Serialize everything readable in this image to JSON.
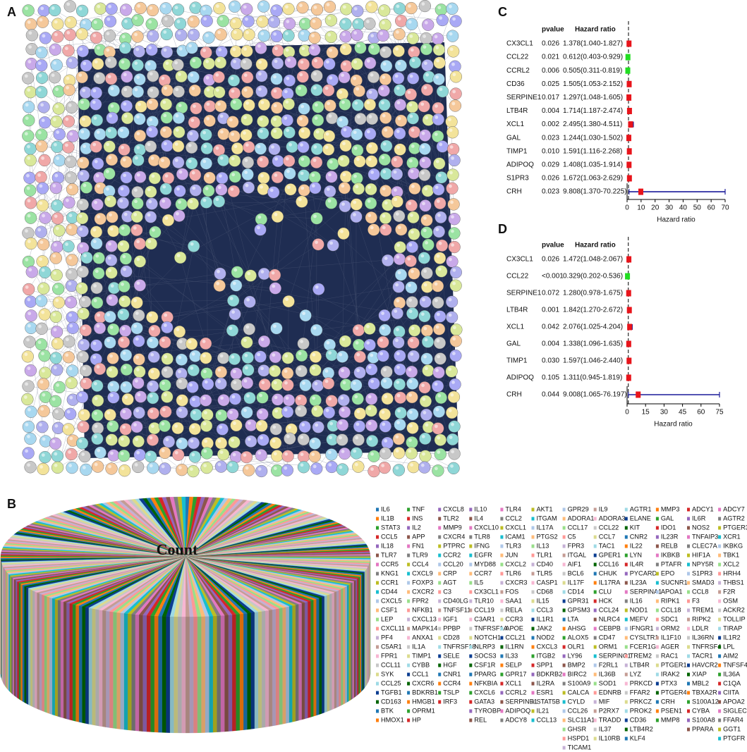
{
  "panels": {
    "A": {
      "label": "A"
    },
    "B": {
      "label": "B",
      "type": "pie",
      "center_label": "Count",
      "colors": [
        "#1f77b4",
        "#ff7f0e",
        "#2ca02c",
        "#d62728",
        "#9467bd",
        "#8c564b",
        "#e377c2",
        "#7f7f7f",
        "#bcbd22",
        "#17becf",
        "#aec7e8",
        "#ffbb78",
        "#98df8a",
        "#ff9896",
        "#c5b0d5",
        "#c49c94",
        "#f7b6d2",
        "#c7c7c7",
        "#dbdb8d",
        "#9edae5",
        "#0b3d91",
        "#006400"
      ],
      "columns": [
        [
          "IL6",
          "IL1B",
          "STAT3",
          "CCL5",
          "IL18",
          "TLR7",
          "CCR5",
          "KNG1",
          "CCR1",
          "CD44",
          "CXCL5",
          "CSF1",
          "LEP",
          "CXCL11",
          "PF4",
          "C5AR1",
          "FPR1",
          "CCL11",
          "SYK",
          "CCL25",
          "TGFB1",
          "CD163",
          "BTK",
          "HMOX1"
        ],
        [
          "TNF",
          "INS",
          "IL2",
          "APP",
          "FN1",
          "TLR9",
          "CCL4",
          "CXCL9",
          "FOXP3",
          "CXCR2",
          "FPR2",
          "NFKB1",
          "CXCL13",
          "MAPK14",
          "ANXA1",
          "IL1A",
          "TIMP1",
          "CYBB",
          "CCL1",
          "CXCR6",
          "BDKRB1",
          "HMGB1",
          "OPRM1",
          "HP"
        ],
        [
          "CXCL8",
          "TLR2",
          "MMP9",
          "CXCR4",
          "PTPRC",
          "CCR2",
          "CCL20",
          "CRP",
          "AGT",
          "C3",
          "CD40LG",
          "TNFSF11",
          "IGF1",
          "PPBP",
          "CD28",
          "TNFRSF18",
          "SELE",
          "HGF",
          "CNR1",
          "CCR4",
          "TSLP",
          "IRF3"
        ],
        [
          "IL10",
          "IL4",
          "CXCL10",
          "TLR8",
          "IFNG",
          "EGFR",
          "MYD88",
          "CCR7",
          "IL5",
          "CX3CL1",
          "TLR10",
          "CCL19",
          "C3AR1",
          "TNFRSF1A",
          "NOTCH1",
          "NLRP3",
          "SOCS3",
          "CSF1R",
          "PPARG",
          "NFKBIA",
          "CXCL6",
          "GATA3",
          "TYROBP",
          "REL"
        ],
        [
          "TLR4",
          "CCL2",
          "CXCL1",
          "ICAM1",
          "TLR3",
          "JUN",
          "CXCL2",
          "TLR6",
          "CXCR3",
          "FOS",
          "SAA1",
          "RELA",
          "CCR3",
          "APOE",
          "CCL21",
          "IL1RN",
          "IL33",
          "SELP",
          "GPR17",
          "XCL1",
          "CCRL2",
          "SERPINE1",
          "ADIPOQ",
          "ADCY8"
        ],
        [
          "AKT1",
          "ITGAM",
          "IL17A",
          "PTGS2",
          "IL13",
          "TLR1",
          "CD40",
          "TLR5",
          "CASP1",
          "CD68",
          "IL15",
          "CCL3",
          "IL1R1",
          "JAK2",
          "NOD2",
          "CXCL3",
          "ITGB2",
          "SPP1",
          "BDKRB2",
          "IL2RA",
          "ESR1",
          "STAT5B",
          "IL21",
          "CCL13"
        ],
        [
          "GPR29",
          "ADORA1",
          "CCL17",
          "C5",
          "FPR3",
          "ITGAL",
          "AIF1",
          "BCL6",
          "IL17F",
          "CD14",
          "GPR31",
          "GPSM3",
          "LTA",
          "AHSG",
          "ALOX5",
          "OLR1",
          "LY96",
          "BMP2",
          "BIRC2",
          "S100A9",
          "CALCA",
          "CYLD",
          "CCL26",
          "SLC11A1",
          "GHSR",
          "HSPD1",
          "TICAM1"
        ],
        [
          "IL9",
          "ADORA3",
          "CCL22",
          "CCL7",
          "TAC1",
          "GPER1",
          "CCL16",
          "CHUK",
          "IL17RA",
          "CLU",
          "HCK",
          "CCL24",
          "NLRC4",
          "CEBPB",
          "CD47",
          "ORM1",
          "SERPINC1",
          "F2RL1",
          "IL36B",
          "SOD1",
          "EDNRB",
          "MIF",
          "P2RX7",
          "TRADD",
          "IL37",
          "IL10RB"
        ],
        [
          "AGTR1",
          "ELANE",
          "KIT",
          "CNR2",
          "IL22",
          "LYN",
          "IL4R",
          "PYCARD",
          "IL23A",
          "SERPINA1",
          "IL16",
          "NOD1",
          "MEFV",
          "IFNGR1",
          "CYSLTR1",
          "FCER1G",
          "TREM2",
          "LTB4R",
          "LYZ",
          "PRKCD",
          "FFAR2",
          "PRKCZ",
          "PROK2",
          "CD36",
          "LTB4R2",
          "KLF4"
        ],
        [
          "MMP3",
          "GAL",
          "IDO1",
          "IL23R",
          "RELB",
          "IKBKB",
          "PTAFR",
          "EPO",
          "SUCNR1",
          "APOA1",
          "RIPK1",
          "CCL18",
          "SDC1",
          "ORM2",
          "IL1F10",
          "AGER",
          "RAC1",
          "PTGER1",
          "IRAK2",
          "PTX3",
          "PTGER4",
          "CRH",
          "PSEN1",
          "MMP8"
        ],
        [
          "ADCY1",
          "IL6R",
          "NOS2",
          "TNFAIP3",
          "CLEC7A",
          "HIF1A",
          "NPY5R",
          "S1PR3",
          "SMAD3",
          "CCL8",
          "F3",
          "TREM1",
          "RIPK2",
          "LDLR",
          "IL36RN",
          "TNFRSF4",
          "TACR1",
          "HAVCR2",
          "XIAP",
          "MBL2",
          "TBXA2R",
          "S100A12",
          "CYBA",
          "S100A8",
          "PPARA"
        ],
        [
          "ADCY7",
          "AGTR2",
          "PTGER3",
          "XCR1",
          "IKBKG",
          "TBK1",
          "XCL2",
          "HRH4",
          "THBS1",
          "F2R",
          "OSM",
          "ACKR2",
          "TOLLIP",
          "TIRAP",
          "IL1R2",
          "LPL",
          "AIM2",
          "TNFSF4",
          "IL36A",
          "C1QA",
          "CIITA",
          "APOA2",
          "SIGLEC1",
          "FFAR4",
          "GGT1",
          "PTGFR"
        ]
      ]
    },
    "C": {
      "label": "C",
      "type": "forest",
      "pvalue_header": "pvalue",
      "hr_header": "Hazard ratio",
      "xlabel": "Hazard ratio",
      "xlim": [
        0,
        70
      ],
      "xticks": [
        0,
        10,
        20,
        30,
        40,
        50,
        60,
        70
      ],
      "reference": 1,
      "ci_color": "#1a1a9a",
      "rows": [
        {
          "name": "CX3CL1",
          "pvalue": "0.026",
          "hr": 1.378,
          "lower": 1.04,
          "upper": 1.827,
          "label": "1.378(1.040-1.827)",
          "color": "#e8141b"
        },
        {
          "name": "CCL22",
          "pvalue": "0.021",
          "hr": 0.612,
          "lower": 0.403,
          "upper": 0.929,
          "label": "0.612(0.403-0.929)",
          "color": "#22dd22"
        },
        {
          "name": "CCRL2",
          "pvalue": "0.006",
          "hr": 0.505,
          "lower": 0.311,
          "upper": 0.819,
          "label": "0.505(0.311-0.819)",
          "color": "#22dd22"
        },
        {
          "name": "CD36",
          "pvalue": "0.025",
          "hr": 1.505,
          "lower": 1.053,
          "upper": 2.152,
          "label": "1.505(1.053-2.152)",
          "color": "#e8141b"
        },
        {
          "name": "SERPINE1",
          "pvalue": "0.017",
          "hr": 1.297,
          "lower": 1.048,
          "upper": 1.605,
          "label": "1.297(1.048-1.605)",
          "color": "#e8141b"
        },
        {
          "name": "LTB4R",
          "pvalue": "0.004",
          "hr": 1.714,
          "lower": 1.187,
          "upper": 2.474,
          "label": "1.714(1.187-2.474)",
          "color": "#e8141b"
        },
        {
          "name": "XCL1",
          "pvalue": "0.002",
          "hr": 2.495,
          "lower": 1.38,
          "upper": 4.511,
          "label": "2.495(1.380-4.511)",
          "color": "#e8141b"
        },
        {
          "name": "GAL",
          "pvalue": "0.023",
          "hr": 1.244,
          "lower": 1.03,
          "upper": 1.502,
          "label": "1.244(1.030-1.502)",
          "color": "#e8141b"
        },
        {
          "name": "TIMP1",
          "pvalue": "0.010",
          "hr": 1.591,
          "lower": 1.116,
          "upper": 2.268,
          "label": "1.591(1.116-2.268)",
          "color": "#e8141b"
        },
        {
          "name": "ADIPOQ",
          "pvalue": "0.029",
          "hr": 1.408,
          "lower": 1.035,
          "upper": 1.914,
          "label": "1.408(1.035-1.914)",
          "color": "#e8141b"
        },
        {
          "name": "S1PR3",
          "pvalue": "0.026",
          "hr": 1.672,
          "lower": 1.063,
          "upper": 2.629,
          "label": "1.672(1.063-2.629)",
          "color": "#e8141b"
        },
        {
          "name": "CRH",
          "pvalue": "0.023",
          "hr": 9.808,
          "lower": 1.37,
          "upper": 70.225,
          "label": "9.808(1.370-70.225)",
          "color": "#e8141b"
        }
      ]
    },
    "D": {
      "label": "D",
      "type": "forest",
      "pvalue_header": "pvalue",
      "hr_header": "Hazard ratio",
      "xlabel": "Hazard ratio",
      "xlim": [
        0,
        75
      ],
      "xticks": [
        0,
        15,
        30,
        45,
        60,
        75
      ],
      "reference": 1,
      "ci_color": "#1a1a9a",
      "rows": [
        {
          "name": "CX3CL1",
          "pvalue": "0.026",
          "hr": 1.472,
          "lower": 1.048,
          "upper": 2.067,
          "label": "1.472(1.048-2.067)",
          "color": "#e8141b"
        },
        {
          "name": "CCL22",
          "pvalue": "<0.001",
          "hr": 0.329,
          "lower": 0.202,
          "upper": 0.536,
          "label": "0.329(0.202-0.536)",
          "color": "#22dd22"
        },
        {
          "name": "SERPINE1",
          "pvalue": "0.072",
          "hr": 1.28,
          "lower": 0.978,
          "upper": 1.675,
          "label": "1.280(0.978-1.675)",
          "color": "#e8141b"
        },
        {
          "name": "LTB4R",
          "pvalue": "0.001",
          "hr": 1.842,
          "lower": 1.27,
          "upper": 2.672,
          "label": "1.842(1.270-2.672)",
          "color": "#e8141b"
        },
        {
          "name": "XCL1",
          "pvalue": "0.042",
          "hr": 2.076,
          "lower": 1.025,
          "upper": 4.204,
          "label": "2.076(1.025-4.204)",
          "color": "#e8141b"
        },
        {
          "name": "GAL",
          "pvalue": "0.004",
          "hr": 1.338,
          "lower": 1.096,
          "upper": 1.635,
          "label": "1.338(1.096-1.635)",
          "color": "#e8141b"
        },
        {
          "name": "TIMP1",
          "pvalue": "0.030",
          "hr": 1.597,
          "lower": 1.046,
          "upper": 2.44,
          "label": "1.597(1.046-2.440)",
          "color": "#e8141b"
        },
        {
          "name": "ADIPOQ",
          "pvalue": "0.105",
          "hr": 1.311,
          "lower": 0.945,
          "upper": 1.819,
          "label": "1.311(0.945-1.819)",
          "color": "#e8141b"
        },
        {
          "name": "CRH",
          "pvalue": "0.044",
          "hr": 9.008,
          "lower": 1.065,
          "upper": 76.197,
          "label": "9.008(1.065-76.197)",
          "color": "#e8141b"
        }
      ]
    }
  }
}
